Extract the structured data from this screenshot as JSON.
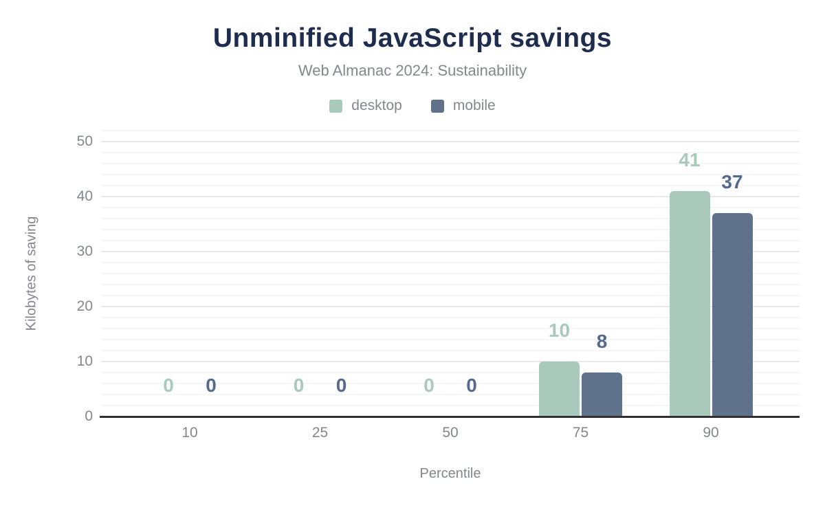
{
  "chart_data": {
    "type": "bar",
    "title": "Unminified JavaScript savings",
    "subtitle": "Web Almanac 2024: Sustainability",
    "xlabel": "Percentile",
    "ylabel": "Kilobytes of saving",
    "categories": [
      "10",
      "25",
      "50",
      "75",
      "90"
    ],
    "series": [
      {
        "name": "desktop",
        "color": "#a9cabb",
        "label_color": "#a9cabb",
        "values": [
          0,
          0,
          0,
          10,
          41
        ]
      },
      {
        "name": "mobile",
        "color": "#60718c",
        "label_color": "#55698c",
        "values": [
          0,
          0,
          0,
          8,
          37
        ]
      }
    ],
    "ylim": [
      0,
      52
    ],
    "yticks": [
      0,
      10,
      20,
      30,
      40,
      50
    ],
    "ytick_interval": 10,
    "minor_tick_interval": 2,
    "grid": "horizontal",
    "legend_position": "top"
  },
  "colors": {
    "title": "#1e2d4e",
    "muted_text": "#85878e",
    "tick_text": "#84868d",
    "axis_line": "#303030",
    "gridline_major": "#e9e9e9",
    "gridline_minor": "#f6f6f6",
    "background": "#ffffff"
  }
}
